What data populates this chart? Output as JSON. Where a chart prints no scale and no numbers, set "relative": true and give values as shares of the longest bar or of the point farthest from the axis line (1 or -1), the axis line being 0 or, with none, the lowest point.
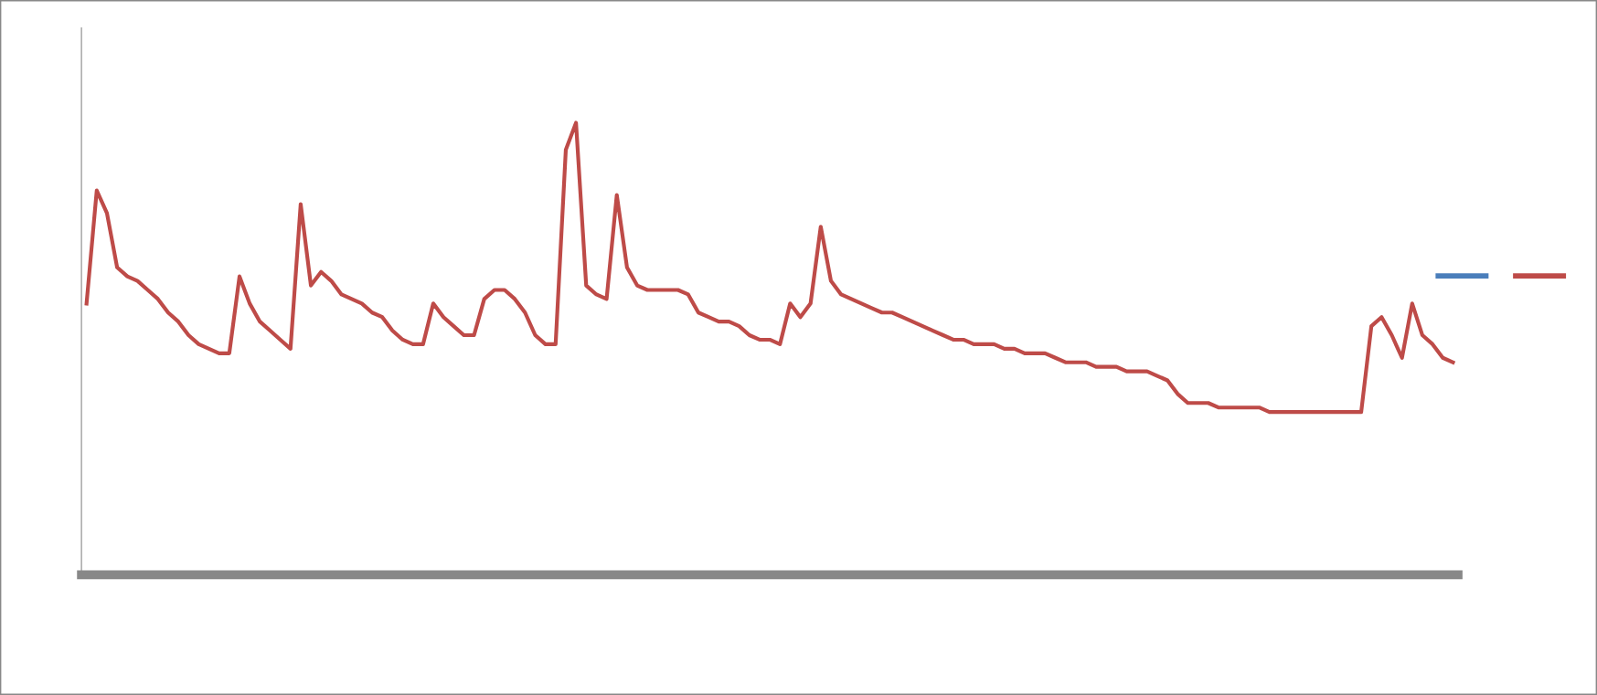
{
  "chart_data": {
    "type": "line",
    "relative": true,
    "marker": "none",
    "line_style": "solid",
    "categories": [
      null,
      null,
      null,
      null,
      null,
      null,
      null,
      null,
      null,
      null,
      null,
      null,
      null,
      null,
      null,
      null,
      null,
      null,
      null,
      null,
      null,
      null,
      null,
      null,
      null,
      null,
      null,
      null,
      null,
      null,
      null,
      null,
      null,
      null,
      null,
      null,
      null,
      null,
      null,
      null,
      null,
      null,
      null,
      null,
      null,
      null,
      null,
      null,
      null,
      null,
      null,
      null,
      null,
      null,
      null,
      null,
      null,
      null,
      null,
      null,
      null,
      null,
      null,
      null,
      null,
      null,
      null,
      null,
      null,
      null,
      null,
      null,
      null,
      null,
      null,
      null,
      null,
      null,
      null,
      null,
      null,
      null,
      null,
      null,
      null,
      null,
      null,
      null,
      null,
      null,
      null,
      null,
      null,
      null,
      null,
      null,
      null,
      null,
      null,
      null,
      null,
      null,
      null,
      null,
      null,
      null,
      null,
      null,
      null,
      null,
      null,
      null,
      null,
      null,
      null,
      null,
      null,
      null,
      null,
      null,
      null,
      null,
      null,
      null,
      null,
      null,
      null,
      null,
      null,
      null,
      null,
      null,
      null,
      null,
      null
    ],
    "series": [
      {
        "color": "#4a7ebb",
        "values": [
          null,
          null,
          null,
          null,
          null,
          null,
          null,
          null,
          null,
          null,
          null,
          null,
          null,
          null,
          null,
          null,
          null,
          null,
          null,
          null,
          null,
          null,
          null,
          null,
          null,
          null,
          null,
          null,
          null,
          null,
          null,
          null,
          null,
          null,
          null,
          null,
          null,
          null,
          null,
          null,
          null,
          null,
          null,
          null,
          null,
          null,
          null,
          null,
          null,
          null,
          null,
          null,
          null,
          null,
          null,
          null,
          null,
          null,
          null,
          null,
          null,
          null,
          null,
          null,
          null,
          null,
          null,
          null,
          null,
          null,
          null,
          null,
          null,
          null,
          null,
          null,
          null,
          null,
          null,
          null,
          null,
          null,
          null,
          null,
          null,
          null,
          null,
          null,
          null,
          null,
          null,
          null,
          null,
          null,
          null,
          null,
          null,
          null,
          null,
          null,
          null,
          null,
          null,
          null,
          null,
          null,
          null,
          null,
          null,
          null,
          null,
          null,
          null,
          null,
          null,
          null,
          null,
          null,
          null,
          null,
          null,
          null,
          null,
          null,
          null,
          null,
          null,
          null,
          null,
          null,
          null,
          null,
          null,
          null,
          null
        ]
      },
      {
        "color": "#be4b48",
        "values": [
          0.6,
          0.85,
          0.8,
          0.68,
          0.66,
          0.65,
          0.63,
          0.61,
          0.58,
          0.56,
          0.53,
          0.51,
          0.5,
          0.49,
          0.49,
          0.66,
          0.6,
          0.56,
          0.54,
          0.52,
          0.5,
          0.82,
          0.64,
          0.67,
          0.65,
          0.62,
          0.61,
          0.6,
          0.58,
          0.57,
          0.54,
          0.52,
          0.51,
          0.51,
          0.6,
          0.57,
          0.55,
          0.53,
          0.53,
          0.61,
          0.63,
          0.63,
          0.61,
          0.58,
          0.53,
          0.51,
          0.51,
          0.94,
          1.0,
          0.64,
          0.62,
          0.61,
          0.84,
          0.68,
          0.64,
          0.63,
          0.63,
          0.63,
          0.63,
          0.62,
          0.58,
          0.57,
          0.56,
          0.56,
          0.55,
          0.53,
          0.52,
          0.52,
          0.51,
          0.6,
          0.57,
          0.6,
          0.77,
          0.65,
          0.62,
          0.61,
          0.6,
          0.59,
          0.58,
          0.58,
          0.57,
          0.56,
          0.55,
          0.54,
          0.53,
          0.52,
          0.52,
          0.51,
          0.51,
          0.51,
          0.5,
          0.5,
          0.49,
          0.49,
          0.49,
          0.48,
          0.47,
          0.47,
          0.47,
          0.46,
          0.46,
          0.46,
          0.45,
          0.45,
          0.45,
          0.44,
          0.43,
          0.4,
          0.38,
          0.38,
          0.38,
          0.37,
          0.37,
          0.37,
          0.37,
          0.37,
          0.36,
          0.36,
          0.36,
          0.36,
          0.36,
          0.36,
          0.36,
          0.36,
          0.36,
          0.36,
          0.55,
          0.57,
          0.53,
          0.48,
          0.6,
          0.53,
          0.51,
          0.48,
          0.47
        ]
      }
    ]
  }
}
